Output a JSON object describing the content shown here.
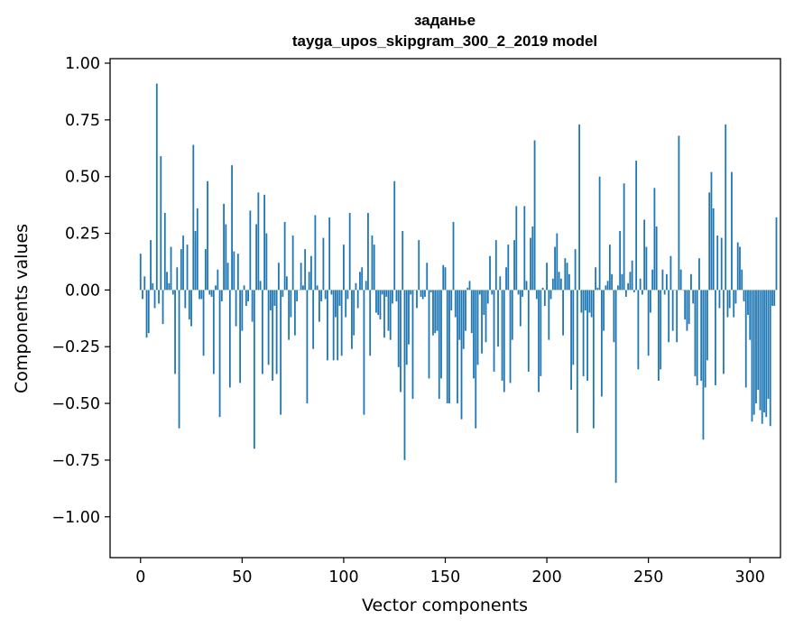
{
  "chart_data": {
    "type": "bar",
    "title_line1": "заданье",
    "title_line2": "tayga_upos_skipgram_300_2_2019 model",
    "xlabel": "Vector components",
    "ylabel": "Components values",
    "xlim": [
      -15,
      315
    ],
    "ylim": [
      -1.18,
      1.02
    ],
    "x_ticks": [
      0,
      50,
      100,
      150,
      200,
      250,
      300
    ],
    "x_tick_labels": [
      "0",
      "50",
      "100",
      "150",
      "200",
      "250",
      "300"
    ],
    "y_ticks": [
      1.0,
      0.75,
      0.5,
      0.25,
      0.0,
      -0.25,
      -0.5,
      -0.75,
      -1.0
    ],
    "y_tick_labels": [
      "1.00",
      "0.75",
      "0.50",
      "0.25",
      "0.00",
      "−0.25",
      "−0.50",
      "−0.75",
      "−1.00"
    ],
    "bar_color": "#1f77b4",
    "grid": false,
    "values": [
      0.16,
      -0.04,
      0.06,
      -0.21,
      -0.19,
      0.22,
      0.03,
      -0.08,
      0.91,
      -0.06,
      0.59,
      -0.15,
      0.34,
      0.08,
      0.03,
      0.19,
      -0.02,
      -0.37,
      0.1,
      -0.61,
      0.18,
      0.24,
      -0.08,
      0.2,
      -0.13,
      -0.16,
      0.64,
      0.26,
      0.36,
      -0.04,
      -0.04,
      -0.29,
      0.18,
      0.48,
      -0.02,
      -0.03,
      -0.37,
      0.02,
      0.09,
      -0.56,
      -0.05,
      0.38,
      0.29,
      0.12,
      -0.43,
      0.55,
      0.17,
      -0.16,
      0.16,
      -0.41,
      -0.18,
      0.02,
      -0.07,
      -0.05,
      0.35,
      -0.14,
      -0.7,
      0.29,
      0.43,
      0.04,
      -0.37,
      0.42,
      0.25,
      -0.33,
      -0.09,
      -0.4,
      -0.07,
      -0.37,
      0.12,
      -0.55,
      -0.03,
      0.3,
      0.06,
      -0.22,
      -0.12,
      0.24,
      -0.2,
      -0.05,
      0.0,
      0.12,
      0.02,
      0.18,
      -0.5,
      0.08,
      0.15,
      -0.26,
      0.33,
      0.02,
      -0.14,
      -0.05,
      0.23,
      -0.04,
      -0.31,
      0.32,
      -0.02,
      -0.31,
      -0.12,
      -0.31,
      -0.07,
      -0.29,
      0.2,
      -0.12,
      -0.04,
      0.34,
      -0.26,
      -0.2,
      0.03,
      -0.08,
      0.08,
      0.1,
      -0.55,
      0.04,
      0.34,
      -0.29,
      0.24,
      0.2,
      -0.1,
      -0.11,
      -0.13,
      -0.02,
      -0.21,
      -0.03,
      -0.18,
      -0.22,
      -0.06,
      0.48,
      -0.05,
      -0.34,
      -0.45,
      0.26,
      -0.75,
      -0.33,
      -0.24,
      -0.02,
      -0.48,
      0.0,
      -0.08,
      0.22,
      -0.03,
      -0.04,
      -0.03,
      0.12,
      -0.39,
      -0.01,
      -0.2,
      -0.19,
      -0.18,
      -0.48,
      -0.39,
      0.11,
      0.1,
      -0.5,
      -0.5,
      -0.09,
      0.3,
      -0.12,
      -0.5,
      -0.22,
      -0.57,
      -0.26,
      -0.18,
      0.01,
      0.04,
      -0.19,
      -0.39,
      -0.61,
      -0.33,
      -0.02,
      -0.28,
      -0.11,
      -0.23,
      -0.06,
      0.15,
      -0.02,
      -0.36,
      0.22,
      -0.25,
      0.06,
      -0.4,
      -0.45,
      0.1,
      0.2,
      -0.41,
      -0.22,
      0.22,
      0.37,
      -0.02,
      -0.16,
      -0.03,
      0.37,
      0.04,
      -0.36,
      0.23,
      0.28,
      0.66,
      -0.04,
      -0.45,
      -0.38,
      0.01,
      -0.07,
      0.12,
      -0.22,
      -0.04,
      0.05,
      0.19,
      0.25,
      0.08,
      0.05,
      -0.2,
      0.14,
      0.12,
      0.07,
      -0.44,
      -0.33,
      0.18,
      -0.63,
      0.73,
      -0.1,
      -0.38,
      -0.09,
      -0.4,
      -0.1,
      -0.12,
      -0.61,
      0.1,
      0.01,
      0.5,
      -0.47,
      -0.18,
      0.02,
      0.04,
      0.2,
      0.07,
      -0.23,
      -0.85,
      0.02,
      0.26,
      0.07,
      0.47,
      -0.03,
      0.03,
      0.08,
      0.13,
      -0.01,
      0.57,
      -0.35,
      0.05,
      -0.02,
      0.31,
      0.19,
      -0.29,
      -0.1,
      0.09,
      0.45,
      0.28,
      -0.4,
      -0.35,
      0.09,
      -0.02,
      0.07,
      -0.23,
      0.15,
      -0.18,
      0.0,
      -0.23,
      0.68,
      0.09,
      0.0,
      -0.13,
      -0.18,
      -0.15,
      0.07,
      -0.06,
      -0.38,
      -0.42,
      0.14,
      -0.4,
      -0.66,
      -0.43,
      -0.31,
      0.43,
      0.52,
      0.36,
      -0.42,
      0.24,
      -0.08,
      0.23,
      -0.37,
      0.73,
      -0.12,
      -0.08,
      0.52,
      -0.12,
      -0.06,
      0.21,
      0.19,
      0.09,
      -0.05,
      -0.43,
      -0.11,
      -0.22,
      -0.58,
      -0.55,
      -0.5,
      -0.44,
      -0.53,
      -0.59,
      -0.54,
      -0.56,
      -0.48,
      -0.6,
      -0.07,
      -0.07,
      0.32
    ]
  }
}
